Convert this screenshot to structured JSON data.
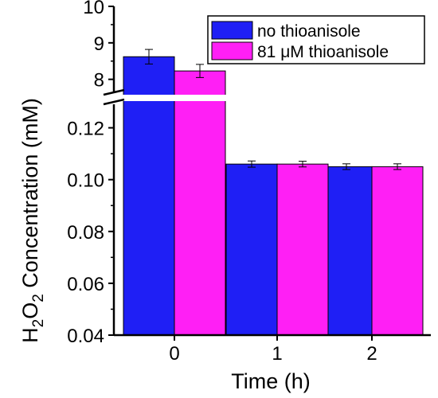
{
  "chart_data": {
    "type": "bar",
    "categories": [
      "0",
      "1",
      "2"
    ],
    "xlabel": "Time (h)",
    "ylabel": {
      "base1": "H",
      "sub1": "2",
      "base2": "O",
      "sub2": "2",
      "rest": " Concentration (mM)"
    },
    "axis_break": true,
    "segments": {
      "upper": {
        "ylim": [
          7.6,
          10
        ],
        "ticks": [
          8,
          9,
          10
        ],
        "tick_labels": [
          "8",
          "9",
          "10"
        ]
      },
      "lower": {
        "ylim": [
          0.04,
          0.13
        ],
        "ticks": [
          0.04,
          0.06,
          0.08,
          0.1,
          0.12
        ],
        "tick_labels": [
          "0.04",
          "0.06",
          "0.08",
          "0.10",
          "0.12"
        ]
      }
    },
    "series": [
      {
        "name": "no thioanisole",
        "color": "#1f1ff5",
        "values": [
          8.62,
          0.106,
          0.105
        ],
        "errors": [
          0.2,
          0.0012,
          0.0011
        ]
      },
      {
        "name": "81 μM thioanisole",
        "color": "#ff1ff5",
        "values": [
          8.23,
          0.106,
          0.105
        ],
        "errors": [
          0.18,
          0.0011,
          0.0011
        ]
      }
    ],
    "legend": {
      "position": "top-right"
    }
  }
}
